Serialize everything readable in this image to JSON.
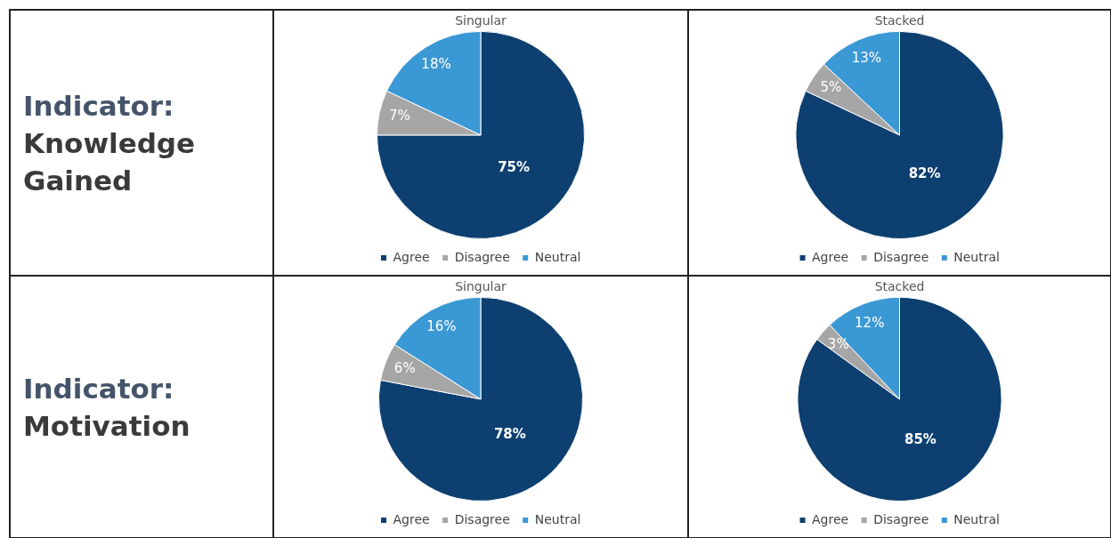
{
  "chart_data": [
    {
      "type": "other",
      "title": "Indicator:",
      "subtitle": "Knowledge Gained"
    },
    {
      "type": "pie",
      "title": "Singular",
      "categories": [
        "Agree",
        "Disagree",
        "Neutral"
      ],
      "values": [
        75,
        7,
        18
      ],
      "value_labels": [
        "75%",
        "7%",
        "18%"
      ],
      "colors": [
        "#0d3f70",
        "#a6a6a6",
        "#3a98d4"
      ],
      "legend": "bottom"
    },
    {
      "type": "pie",
      "title": "Stacked",
      "categories": [
        "Agree",
        "Disagree",
        "Neutral"
      ],
      "values": [
        82,
        5,
        13
      ],
      "value_labels": [
        "82%",
        "5%",
        "13%"
      ],
      "colors": [
        "#0d3f70",
        "#a6a6a6",
        "#3a98d4"
      ],
      "legend": "bottom"
    },
    {
      "type": "other",
      "title": "Indicator:",
      "subtitle": "Motivation"
    },
    {
      "type": "pie",
      "title": "Singular",
      "categories": [
        "Agree",
        "Disagree",
        "Neutral"
      ],
      "values": [
        78,
        6,
        16
      ],
      "value_labels": [
        "78%",
        "6%",
        "16%"
      ],
      "colors": [
        "#0d3f70",
        "#a6a6a6",
        "#3a98d4"
      ],
      "legend": "bottom"
    },
    {
      "type": "pie",
      "title": "Stacked",
      "categories": [
        "Agree",
        "Disagree",
        "Neutral"
      ],
      "values": [
        85,
        3,
        12
      ],
      "value_labels": [
        "85%",
        "3%",
        "12%"
      ],
      "colors": [
        "#0d3f70",
        "#a6a6a6",
        "#3a98d4"
      ],
      "legend": "bottom"
    }
  ]
}
